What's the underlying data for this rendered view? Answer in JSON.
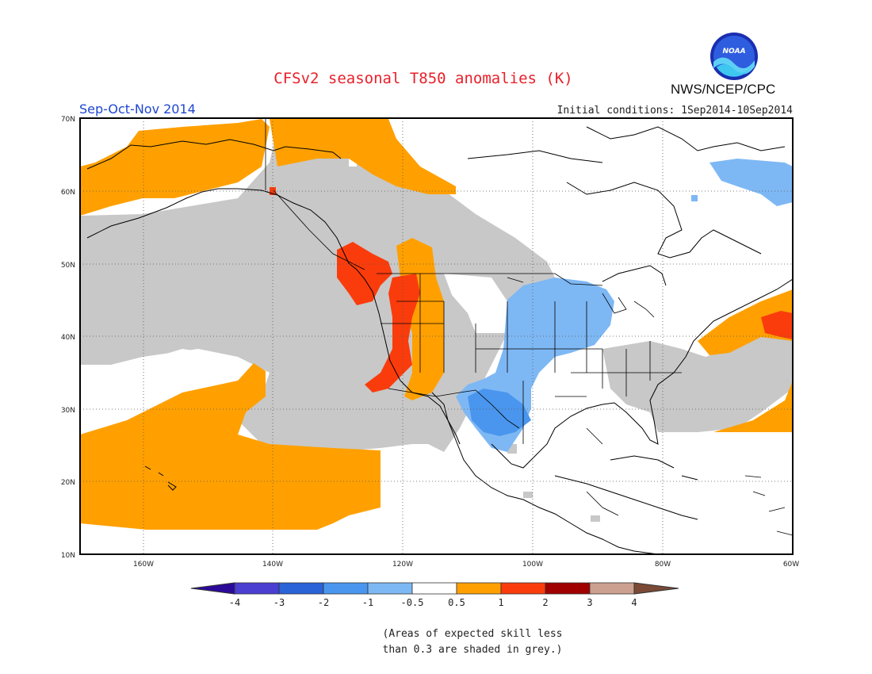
{
  "header": {
    "title": "CFSv2 seasonal T850 anomalies (K)",
    "season": "Sep-Oct-Nov 2014",
    "initial_conditions": "Initial conditions: 1Sep2014-10Sep2014",
    "agency": "NWS/NCEP/CPC",
    "logo_text": "NOAA"
  },
  "map": {
    "region": "North America / NE Pacific",
    "lat_labels": [
      "70N",
      "60N",
      "50N",
      "40N",
      "30N",
      "20N",
      "10N"
    ],
    "lon_labels": [
      "160W",
      "140W",
      "120W",
      "100W",
      "80W",
      "60W"
    ],
    "graticule": "dotted",
    "skill_mask_color": "#c8c8c8"
  },
  "colorbar": {
    "tick_labels": [
      "-4",
      "-3",
      "-2",
      "-1",
      "-0.5",
      "0.5",
      "1",
      "2",
      "3",
      "4"
    ],
    "colors": [
      "#2b0a9a",
      "#4a3fd0",
      "#2a62d8",
      "#4a96ee",
      "#7eb8f4",
      "#ffffff",
      "#ffa000",
      "#fa3c0c",
      "#a00000",
      "#cca090",
      "#7a4a36"
    ]
  },
  "legend_note": {
    "line1": "(Areas of expected skill less",
    "line2": "than 0.3 are shaded in grey.)"
  }
}
